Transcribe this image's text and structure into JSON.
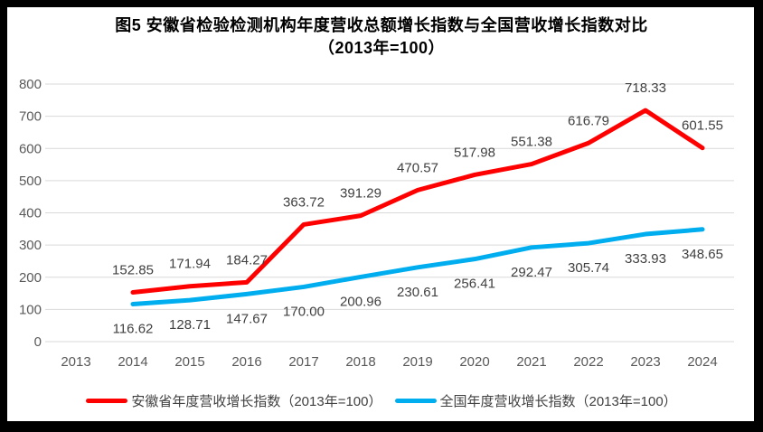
{
  "figure": {
    "title_line1": "图5  安徽省检验检测机构年度营收总额增长指数与全国营收增长指数对比",
    "title_line2": "（2013年=100）"
  },
  "chart_data": {
    "type": "line",
    "title": "图5  安徽省检验检测机构年度营收总额增长指数与全国营收增长指数对比",
    "subtitle": "（2013年=100）",
    "categories": [
      "2013",
      "2014",
      "2015",
      "2016",
      "2017",
      "2018",
      "2019",
      "2020",
      "2021",
      "2022",
      "2023",
      "2024"
    ],
    "series": [
      {
        "name": "安徽省年度营收增长指数（2013年=100）",
        "color": "#FF0000",
        "label_position": "above",
        "values": [
          null,
          152.85,
          171.94,
          184.27,
          363.72,
          391.29,
          470.57,
          517.98,
          551.38,
          616.79,
          718.33,
          601.55
        ]
      },
      {
        "name": "全国年度营收增长指数（2013年=100）",
        "color": "#00AEEF",
        "label_position": "below",
        "values": [
          null,
          116.62,
          128.71,
          147.67,
          170.0,
          200.96,
          230.61,
          256.41,
          292.47,
          305.74,
          333.93,
          348.65
        ]
      }
    ],
    "xlabel": "",
    "ylabel": "",
    "ylim": [
      0,
      800
    ],
    "ytick_step": 100,
    "grid": true,
    "legend_position": "bottom",
    "colors": {
      "gridline": "#D9D9D9",
      "axis_label": "#595959",
      "data_label": "#404040",
      "frame": "#000000",
      "background": "#FFFFFF"
    }
  }
}
